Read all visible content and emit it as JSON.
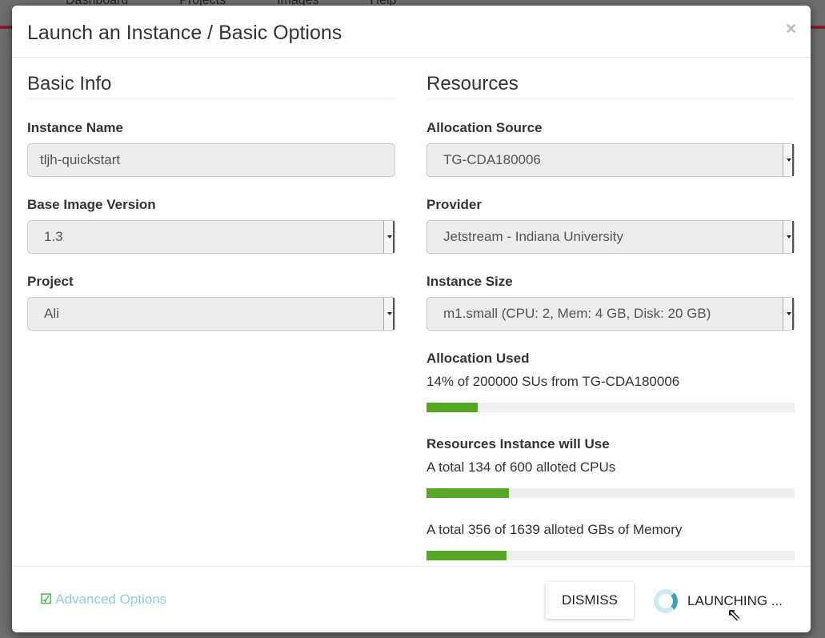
{
  "background": {
    "nav": [
      "Dashboard",
      "Projects",
      "Images",
      "Help"
    ]
  },
  "modal": {
    "title": "Launch an Instance / Basic Options",
    "close": "×",
    "basic": {
      "heading": "Basic Info",
      "instance_name_label": "Instance Name",
      "instance_name_value": "tljh-quickstart",
      "base_image_label": "Base Image Version",
      "base_image_value": "1.3",
      "project_label": "Project",
      "project_value": "Ali"
    },
    "resources": {
      "heading": "Resources",
      "allocation_source_label": "Allocation Source",
      "allocation_source_value": "TG-CDA180006",
      "provider_label": "Provider",
      "provider_value": "Jetstream - Indiana University",
      "instance_size_label": "Instance Size",
      "instance_size_value": "m1.small (CPU: 2, Mem: 4 GB, Disk: 20 GB)",
      "allocation_used_label": "Allocation Used",
      "allocation_used_text": "14% of 200000 SUs from TG-CDA180006",
      "allocation_used_pct": 14,
      "will_use_label": "Resources Instance will Use",
      "cpu_text": "A total 134 of 600 alloted CPUs",
      "cpu_pct": 22.3,
      "mem_text": "A total 356 of 1639 alloted GBs of Memory",
      "mem_pct": 21.7
    },
    "footer": {
      "advanced": "Advanced Options",
      "dismiss": "DISMISS",
      "launching": "LAUNCHING ..."
    }
  },
  "colors": {
    "progress": "#55a823",
    "link": "#8ecfe0",
    "spinner": "#3ba3bd"
  }
}
